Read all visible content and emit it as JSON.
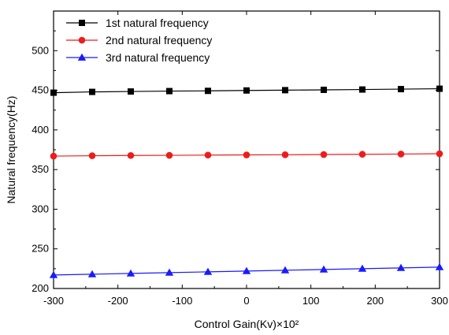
{
  "chart_data": {
    "type": "line",
    "xlabel": "Control Gain(Kv)×10²",
    "ylabel": "Natural frequency(Hz)",
    "xlim": [
      -300,
      300
    ],
    "ylim": [
      200,
      550
    ],
    "xticks": [
      -300,
      -200,
      -100,
      0,
      100,
      200,
      300
    ],
    "yticks": [
      200,
      250,
      300,
      350,
      400,
      450,
      500
    ],
    "legend_position": "top-left",
    "x": [
      -300,
      -240,
      -180,
      -120,
      -60,
      0,
      60,
      120,
      180,
      240,
      300
    ],
    "series": [
      {
        "name": "1st natural frequency",
        "color": "#000000",
        "marker": "square",
        "values": [
          447,
          448,
          448.5,
          449,
          449.3,
          449.8,
          450.2,
          450.6,
          451,
          451.5,
          452
        ]
      },
      {
        "name": "2nd natural frequency",
        "color": "#ee1c1c",
        "marker": "circle",
        "values": [
          367,
          367.5,
          367.8,
          368,
          368.3,
          368.5,
          368.7,
          369,
          369.3,
          369.6,
          370
        ]
      },
      {
        "name": "3rd natural frequency",
        "color": "#1a1aff",
        "marker": "triangle",
        "values": [
          217,
          218,
          219,
          220,
          221,
          222,
          223,
          224,
          225,
          226,
          227
        ]
      }
    ]
  }
}
